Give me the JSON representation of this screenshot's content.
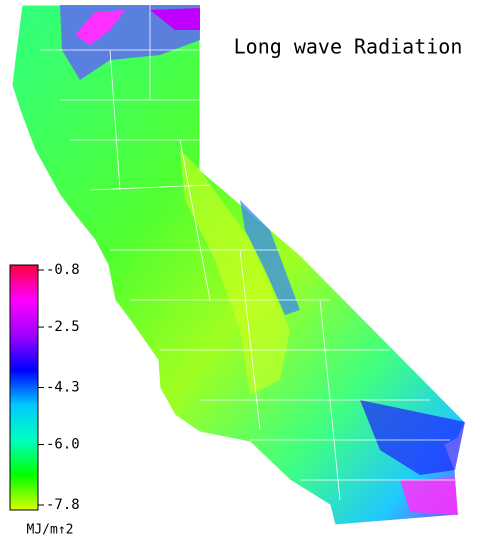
{
  "title": "Long wave Radiation",
  "colorbar": {
    "lim": [
      -7.8,
      -0.8
    ],
    "ticks": [
      -0.8,
      -2.5,
      -4.3,
      {
        "value": -6,
        "label": "-6.0"
      },
      -7.8
    ],
    "colors": [
      "#d8ff00",
      "#00ff00",
      "#00ffc0",
      "#00c8ff",
      "#0000ff",
      "#a000ff",
      "#ff00ff",
      "#ff0040"
    ],
    "unit": "MJ/m↑2"
  }
}
